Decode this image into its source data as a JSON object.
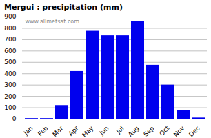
{
  "chart_data": {
    "type": "bar",
    "title": "Mergui : precipitation (mm)",
    "categories": [
      "Jan",
      "Feb",
      "Mar",
      "Apr",
      "May",
      "Jun",
      "Jul",
      "Aug",
      "Sep",
      "Oct",
      "Nov",
      "Dec"
    ],
    "values": [
      5,
      5,
      120,
      420,
      775,
      735,
      735,
      860,
      475,
      300,
      75,
      10
    ],
    "color": "#0000ee",
    "ylim": [
      0,
      900
    ],
    "yticks": [
      0,
      100,
      200,
      300,
      400,
      500,
      600,
      700,
      800,
      900
    ],
    "grid": true,
    "annotations": [
      "www.allmetsat.com"
    ]
  }
}
